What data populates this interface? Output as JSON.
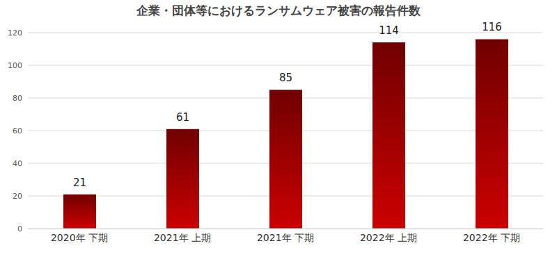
{
  "chart_data": {
    "type": "bar",
    "title": "企業・団体等におけるランサムウェア被害の報告件数",
    "categories": [
      "2020年 下期",
      "2021年 上期",
      "2021年 下期",
      "2022年 上期",
      "2022年 下期"
    ],
    "values": [
      21,
      61,
      85,
      114,
      116
    ],
    "color": "#cc0000",
    "ylim": [
      0,
      120
    ],
    "yticks": [
      0,
      20,
      40,
      60,
      80,
      100,
      120
    ],
    "grid": true,
    "data_labels": true
  }
}
